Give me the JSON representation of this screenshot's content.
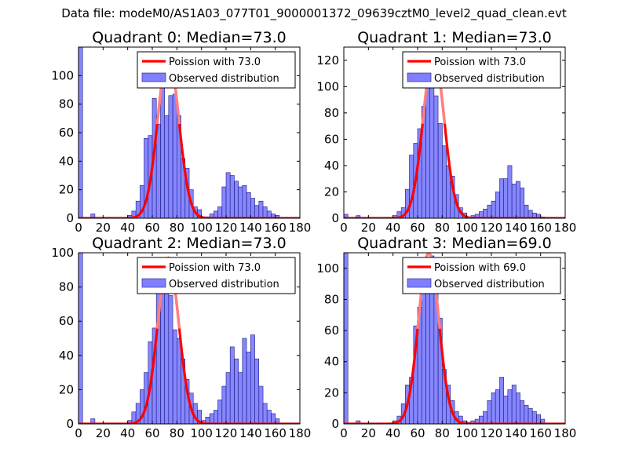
{
  "figure": {
    "title": "Data file: modeM0/AS1A03_077T01_9000001372_09639cztM0_level2_quad_clean.evt"
  },
  "colors": {
    "bar_fill": "#7f7fff",
    "bar_edge": "#1c1c80",
    "poisson_line": "#ff0000",
    "poisson_alpha_line": "#ff8080",
    "axes": "#000000",
    "background": "#ffffff"
  },
  "chart_data": [
    {
      "type": "bar",
      "title": "Quadrant 0: Median=73.0",
      "xlim": [
        0,
        180
      ],
      "ylim": [
        0,
        120
      ],
      "xticks": [
        0,
        20,
        40,
        60,
        80,
        100,
        120,
        140,
        160,
        180
      ],
      "yticks": [
        0,
        20,
        40,
        60,
        80,
        100
      ],
      "legend_location": "upper-right",
      "legend": [
        "Poission with 73.0",
        "Observed distribution"
      ],
      "poisson_mean": 73.0,
      "poisson_peak": 115,
      "bin_width": 3.33,
      "bin_starts": [
        0,
        10,
        40,
        43.3,
        46.7,
        50,
        53.3,
        56.7,
        60,
        63.3,
        66.7,
        70,
        73.3,
        76.7,
        80,
        83.3,
        86.7,
        90,
        93.3,
        96.7,
        100,
        103.3,
        106.7,
        110,
        113.3,
        116.7,
        120,
        123.3,
        126.7,
        130,
        133.3,
        136.7,
        140,
        143.3,
        146.7,
        150,
        153.3,
        156.7,
        160
      ],
      "values": [
        120,
        3,
        2,
        5,
        12,
        23,
        56,
        58,
        84,
        66,
        108,
        72,
        86,
        87,
        72,
        42,
        35,
        20,
        8,
        6,
        1,
        1,
        3,
        5,
        8,
        22,
        32,
        30,
        26,
        22,
        23,
        18,
        14,
        9,
        12,
        8,
        5,
        3,
        2
      ]
    },
    {
      "type": "bar",
      "title": "Quadrant 1: Median=73.0",
      "xlim": [
        0,
        180
      ],
      "ylim": [
        0,
        130
      ],
      "xticks": [
        0,
        20,
        40,
        60,
        80,
        100,
        120,
        140,
        160,
        180
      ],
      "yticks": [
        0,
        20,
        40,
        60,
        80,
        100,
        120
      ],
      "legend_location": "upper-right",
      "legend": [
        "Poission with 73.0",
        "Observed distribution"
      ],
      "poisson_mean": 73.0,
      "poisson_peak": 125,
      "bin_width": 3.33,
      "bin_starts": [
        0,
        10,
        40,
        43.3,
        46.7,
        50,
        53.3,
        56.7,
        60,
        63.3,
        66.7,
        70,
        73.3,
        76.7,
        80,
        83.3,
        86.7,
        90,
        93.3,
        96.7,
        100,
        103.3,
        106.7,
        110,
        113.3,
        116.7,
        120,
        123.3,
        126.7,
        130,
        133.3,
        136.7,
        140,
        143.3,
        146.7,
        150,
        153.3,
        156.7,
        160
      ],
      "values": [
        3,
        2,
        2,
        5,
        8,
        22,
        48,
        57,
        68,
        85,
        122,
        103,
        93,
        72,
        55,
        40,
        32,
        18,
        8,
        4,
        1,
        2,
        3,
        5,
        7,
        10,
        13,
        20,
        30,
        30,
        40,
        26,
        28,
        23,
        10,
        6,
        4,
        3,
        1
      ]
    },
    {
      "type": "bar",
      "title": "Quadrant 2: Median=73.0",
      "xlim": [
        0,
        180
      ],
      "ylim": [
        0,
        100
      ],
      "xticks": [
        0,
        20,
        40,
        60,
        80,
        100,
        120,
        140,
        160,
        180
      ],
      "yticks": [
        0,
        20,
        40,
        60,
        80,
        100
      ],
      "legend_location": "upper-right",
      "legend": [
        "Poission with 73.0",
        "Observed distribution"
      ],
      "poisson_mean": 73.0,
      "poisson_peak": 97,
      "bin_width": 3.33,
      "bin_starts": [
        0,
        10,
        40,
        43.3,
        46.7,
        50,
        53.3,
        56.7,
        60,
        63.3,
        66.7,
        70,
        73.3,
        76.7,
        80,
        83.3,
        86.7,
        90,
        93.3,
        96.7,
        100,
        103.3,
        106.7,
        110,
        113.3,
        116.7,
        120,
        123.3,
        126.7,
        130,
        133.3,
        136.7,
        140,
        143.3,
        146.7,
        150,
        153.3,
        156.7,
        160
      ],
      "values": [
        100,
        3,
        2,
        7,
        12,
        20,
        30,
        48,
        56,
        85,
        92,
        92,
        75,
        55,
        50,
        38,
        26,
        18,
        12,
        8,
        2,
        4,
        6,
        8,
        14,
        22,
        30,
        45,
        38,
        30,
        50,
        42,
        52,
        38,
        22,
        12,
        8,
        6,
        3
      ]
    },
    {
      "type": "bar",
      "title": "Quadrant 3: Median=69.0",
      "xlim": [
        0,
        180
      ],
      "ylim": [
        0,
        110
      ],
      "xticks": [
        0,
        20,
        40,
        60,
        80,
        100,
        120,
        140,
        160,
        180
      ],
      "yticks": [
        0,
        20,
        40,
        60,
        80,
        100
      ],
      "legend_location": "upper-right",
      "legend": [
        "Poission with 69.0",
        "Observed distribution"
      ],
      "poisson_mean": 69.0,
      "poisson_peak": 110,
      "bin_width": 3.33,
      "bin_starts": [
        0,
        10,
        40,
        43.3,
        46.7,
        50,
        53.3,
        56.7,
        60,
        63.3,
        66.7,
        70,
        73.3,
        76.7,
        80,
        83.3,
        86.7,
        90,
        93.3,
        96.7,
        100,
        103.3,
        106.7,
        110,
        113.3,
        116.7,
        120,
        123.3,
        126.7,
        130,
        133.3,
        136.7,
        140,
        143.3,
        146.7,
        150,
        153.3,
        156.7,
        160
      ],
      "values": [
        110,
        2,
        2,
        5,
        13,
        25,
        30,
        63,
        75,
        85,
        100,
        108,
        95,
        68,
        35,
        25,
        15,
        8,
        5,
        2,
        1,
        2,
        3,
        5,
        8,
        15,
        20,
        22,
        30,
        18,
        22,
        25,
        20,
        15,
        12,
        10,
        8,
        6,
        3
      ]
    }
  ]
}
